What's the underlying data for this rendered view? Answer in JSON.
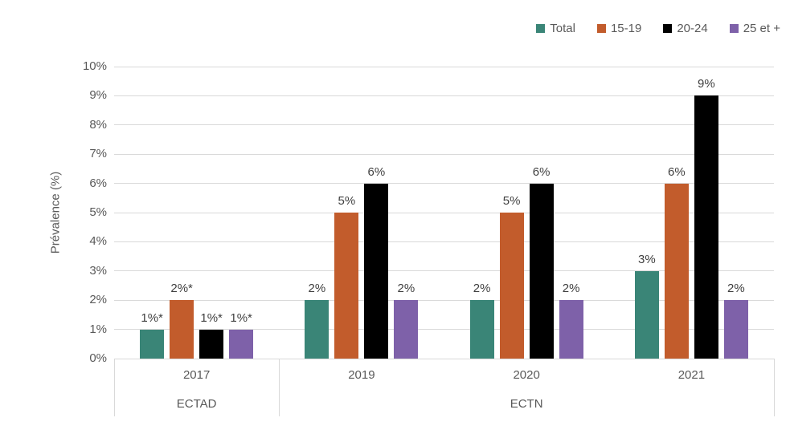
{
  "chart_data": {
    "type": "bar",
    "title": "",
    "ylabel": "Prévalence (%)",
    "ylim": [
      0,
      10
    ],
    "yticks": [
      "0%",
      "1%",
      "2%",
      "3%",
      "4%",
      "5%",
      "6%",
      "7%",
      "8%",
      "9%",
      "10%"
    ],
    "grid": true,
    "legend_position": "top-right",
    "categories": [
      "2017",
      "2019",
      "2020",
      "2021"
    ],
    "survey_groups": [
      {
        "label": "ECTAD",
        "from": 0,
        "to": 0
      },
      {
        "label": "ECTN",
        "from": 1,
        "to": 3
      }
    ],
    "series": [
      {
        "name": "Total",
        "color": "#3A8577",
        "values": [
          1,
          2,
          2,
          3
        ],
        "value_labels": [
          "1%*",
          "2%",
          "2%",
          "3%"
        ]
      },
      {
        "name": "15-19",
        "color": "#C25C2C",
        "values": [
          2,
          5,
          5,
          6
        ],
        "value_labels": [
          "2%*",
          "5%",
          "5%",
          "6%"
        ]
      },
      {
        "name": "20-24",
        "color": "#000000",
        "values": [
          1,
          6,
          6,
          9
        ],
        "value_labels": [
          "1%*",
          "6%",
          "6%",
          "9%"
        ]
      },
      {
        "name": "25 et +",
        "color": "#7E61A9",
        "values": [
          1,
          2,
          2,
          2
        ],
        "value_labels": [
          "1%*",
          "2%",
          "2%",
          "2%"
        ]
      }
    ]
  },
  "colors": {
    "gridline": "#D9D9D9",
    "axis_text": "#595959",
    "value_label_text": "#404040"
  }
}
